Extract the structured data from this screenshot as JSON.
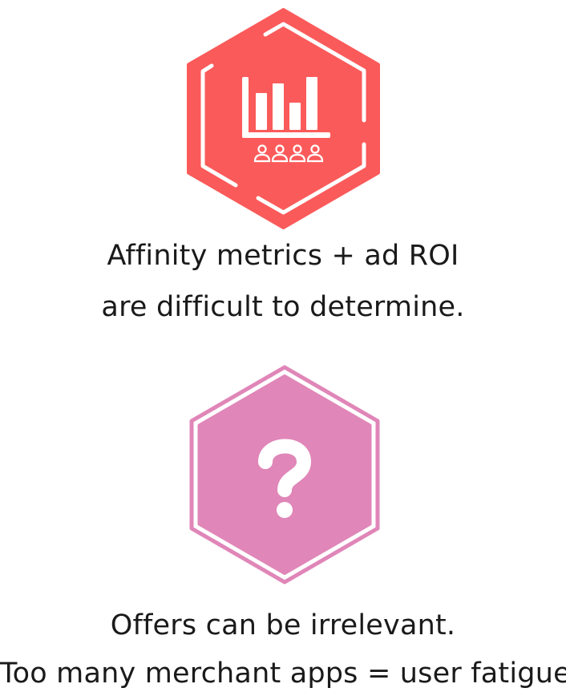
{
  "colors": {
    "coral": "#FB5A5A",
    "pink": "#E086B8",
    "text": "#1a1a1a",
    "white": "#ffffff"
  },
  "items": [
    {
      "icon": "bar-chart-audience-icon",
      "color": "#FB5A5A",
      "lines": [
        "Affinity metrics + ad ROI",
        "are difficult to determine."
      ]
    },
    {
      "icon": "question-mark-icon",
      "color": "#E086B8",
      "lines": [
        "Offers can be irrelevant.",
        "Too many merchant apps = user fatigue."
      ]
    }
  ]
}
